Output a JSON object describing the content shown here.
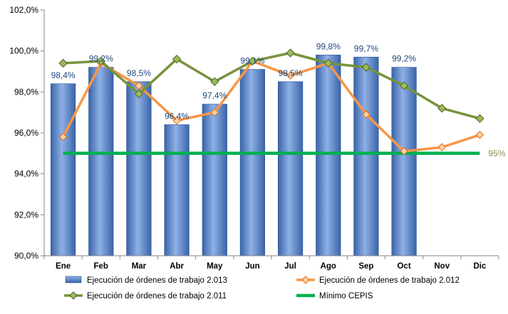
{
  "chart_data": {
    "type": "bar",
    "categories": [
      "Ene",
      "Feb",
      "Mar",
      "Abr",
      "May",
      "Jun",
      "Jul",
      "Ago",
      "Sep",
      "Oct",
      "Nov",
      "Dic"
    ],
    "y_tick_labels": [
      "90,0%",
      "92,0%",
      "94,0%",
      "96,0%",
      "98,0%",
      "100,0%",
      "102,0%"
    ],
    "y_ticks": [
      90,
      92,
      94,
      96,
      98,
      100,
      102
    ],
    "ylim": [
      90,
      102
    ],
    "grid": false,
    "legend_position": "bottom",
    "series": [
      {
        "name": "Ejecución de órdenes de trabajo 2.013",
        "type": "bar",
        "color": "#4f81bd",
        "values": [
          98.4,
          99.2,
          98.5,
          96.4,
          97.4,
          99.1,
          98.5,
          99.8,
          99.7,
          99.2,
          null,
          null
        ],
        "labels": [
          "98,4%",
          "99,2%",
          "98,5%",
          "96,4%",
          "97,4%",
          "99,1%",
          "98,5%",
          "99,8%",
          "99,7%",
          "99,2%",
          "",
          ""
        ]
      },
      {
        "name": "Ejecución de órdenes de trabajo 2.012",
        "type": "line",
        "color": "#f79646",
        "values": [
          95.8,
          99.4,
          98.3,
          96.6,
          97.0,
          99.5,
          98.8,
          99.4,
          96.9,
          95.1,
          95.3,
          95.9
        ]
      },
      {
        "name": "Ejecución de órdenes de trabajo 2.011",
        "type": "line",
        "color": "#77933c",
        "values": [
          99.4,
          99.5,
          97.9,
          99.6,
          98.5,
          99.5,
          99.9,
          99.4,
          99.2,
          98.3,
          97.2,
          96.7
        ]
      },
      {
        "name": "Mínimo CEPIS",
        "type": "line",
        "color": "#00b050",
        "values": [
          95,
          95,
          95,
          95,
          95,
          95,
          95,
          95,
          95,
          95,
          95,
          95
        ],
        "end_label": "95%"
      }
    ]
  }
}
